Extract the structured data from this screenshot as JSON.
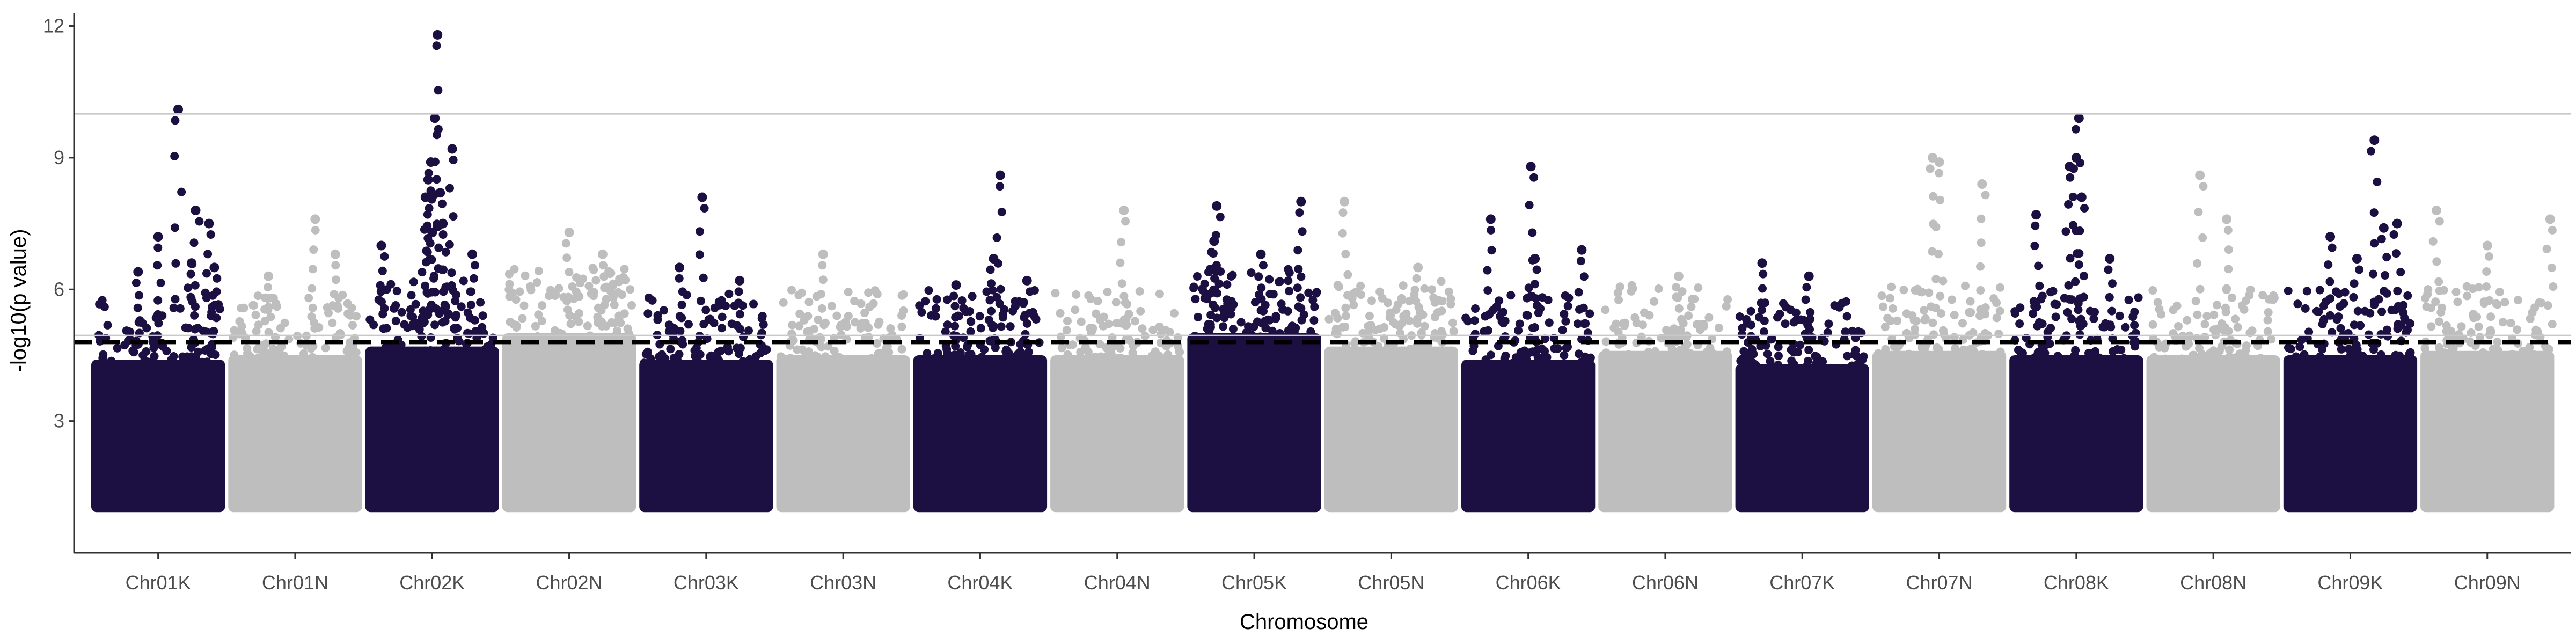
{
  "chart_data": {
    "type": "scatter",
    "subtype": "manhattan",
    "xlabel": "Chromosome",
    "ylabel": "-log10(p value)",
    "ylim": [
      0,
      12.3
    ],
    "y_ticks": [
      3,
      6,
      9,
      12
    ],
    "categories": [
      "Chr01K",
      "Chr01N",
      "Chr02K",
      "Chr02N",
      "Chr03K",
      "Chr03N",
      "Chr04K",
      "Chr04N",
      "Chr05K",
      "Chr05N",
      "Chr06K",
      "Chr06N",
      "Chr07K",
      "Chr07N",
      "Chr08K",
      "Chr08N",
      "Chr09K",
      "Chr09N"
    ],
    "point_floor": 1.0,
    "dense_band_tops": [
      4.4,
      4.5,
      4.7,
      5.0,
      4.4,
      4.5,
      4.5,
      4.5,
      5.0,
      4.7,
      4.4,
      4.6,
      4.3,
      4.6,
      4.5,
      4.5,
      4.5,
      4.6
    ],
    "significance_threshold": 4.8,
    "suggestive_lines": [
      10,
      4.95
    ],
    "grid": false,
    "legend": "none",
    "colors": {
      "odd_chromosome": "#1c0f42",
      "even_chromosome": "#bebebe",
      "threshold_line": "#000000",
      "reference_line": "#c8c8c8",
      "axis": "#333333"
    },
    "notable_points": [
      {
        "chr": "Chr01K",
        "pos": 0.35,
        "y": 6.4
      },
      {
        "chr": "Chr01K",
        "pos": 0.5,
        "y": 7.2
      },
      {
        "chr": "Chr01K",
        "pos": 0.65,
        "y": 10.1
      },
      {
        "chr": "Chr01K",
        "pos": 0.75,
        "y": 6.6
      },
      {
        "chr": "Chr01K",
        "pos": 0.78,
        "y": 7.8
      },
      {
        "chr": "Chr01K",
        "pos": 0.88,
        "y": 7.5
      },
      {
        "chr": "Chr01K",
        "pos": 0.92,
        "y": 6.5
      },
      {
        "chr": "Chr01N",
        "pos": 0.3,
        "y": 6.3
      },
      {
        "chr": "Chr01N",
        "pos": 0.65,
        "y": 7.6
      },
      {
        "chr": "Chr01N",
        "pos": 0.8,
        "y": 6.8
      },
      {
        "chr": "Chr02K",
        "pos": 0.12,
        "y": 7.0
      },
      {
        "chr": "Chr02K",
        "pos": 0.45,
        "y": 8.1
      },
      {
        "chr": "Chr02K",
        "pos": 0.47,
        "y": 8.5
      },
      {
        "chr": "Chr02K",
        "pos": 0.49,
        "y": 8.9
      },
      {
        "chr": "Chr02K",
        "pos": 0.5,
        "y": 7.3
      },
      {
        "chr": "Chr02K",
        "pos": 0.52,
        "y": 9.9
      },
      {
        "chr": "Chr02K",
        "pos": 0.54,
        "y": 11.8
      },
      {
        "chr": "Chr02K",
        "pos": 0.56,
        "y": 8.2
      },
      {
        "chr": "Chr02K",
        "pos": 0.58,
        "y": 7.5
      },
      {
        "chr": "Chr02K",
        "pos": 0.65,
        "y": 9.2
      },
      {
        "chr": "Chr02K",
        "pos": 0.8,
        "y": 6.8
      },
      {
        "chr": "Chr02N",
        "pos": 0.5,
        "y": 7.3
      },
      {
        "chr": "Chr02N",
        "pos": 0.75,
        "y": 6.8
      },
      {
        "chr": "Chr03K",
        "pos": 0.3,
        "y": 6.5
      },
      {
        "chr": "Chr03K",
        "pos": 0.47,
        "y": 8.1
      },
      {
        "chr": "Chr03K",
        "pos": 0.75,
        "y": 6.2
      },
      {
        "chr": "Chr03N",
        "pos": 0.35,
        "y": 6.8
      },
      {
        "chr": "Chr04K",
        "pos": 0.32,
        "y": 6.1
      },
      {
        "chr": "Chr04K",
        "pos": 0.6,
        "y": 6.7
      },
      {
        "chr": "Chr04K",
        "pos": 0.65,
        "y": 8.6
      },
      {
        "chr": "Chr04K",
        "pos": 0.85,
        "y": 6.2
      },
      {
        "chr": "Chr04N",
        "pos": 0.55,
        "y": 7.8
      },
      {
        "chr": "Chr05K",
        "pos": 0.2,
        "y": 7.1
      },
      {
        "chr": "Chr05K",
        "pos": 0.22,
        "y": 7.9
      },
      {
        "chr": "Chr05K",
        "pos": 0.55,
        "y": 6.8
      },
      {
        "chr": "Chr05K",
        "pos": 0.85,
        "y": 8.0
      },
      {
        "chr": "Chr05N",
        "pos": 0.15,
        "y": 8.0
      },
      {
        "chr": "Chr05N",
        "pos": 0.7,
        "y": 6.5
      },
      {
        "chr": "Chr06K",
        "pos": 0.22,
        "y": 7.6
      },
      {
        "chr": "Chr06K",
        "pos": 0.55,
        "y": 6.7
      },
      {
        "chr": "Chr06K",
        "pos": 0.52,
        "y": 8.8
      },
      {
        "chr": "Chr06K",
        "pos": 0.9,
        "y": 6.9
      },
      {
        "chr": "Chr06N",
        "pos": 0.6,
        "y": 6.3
      },
      {
        "chr": "Chr07K",
        "pos": 0.2,
        "y": 6.6
      },
      {
        "chr": "Chr07K",
        "pos": 0.55,
        "y": 6.3
      },
      {
        "chr": "Chr07N",
        "pos": 0.45,
        "y": 9.0
      },
      {
        "chr": "Chr07N",
        "pos": 0.5,
        "y": 8.9
      },
      {
        "chr": "Chr07N",
        "pos": 0.82,
        "y": 8.4
      },
      {
        "chr": "Chr08K",
        "pos": 0.45,
        "y": 8.8
      },
      {
        "chr": "Chr08K",
        "pos": 0.5,
        "y": 9.0
      },
      {
        "chr": "Chr08K",
        "pos": 0.52,
        "y": 9.9
      },
      {
        "chr": "Chr08K",
        "pos": 0.54,
        "y": 8.1
      },
      {
        "chr": "Chr08K",
        "pos": 0.2,
        "y": 7.7
      },
      {
        "chr": "Chr08K",
        "pos": 0.75,
        "y": 6.7
      },
      {
        "chr": "Chr08N",
        "pos": 0.4,
        "y": 8.6
      },
      {
        "chr": "Chr08N",
        "pos": 0.6,
        "y": 7.6
      },
      {
        "chr": "Chr09K",
        "pos": 0.35,
        "y": 7.2
      },
      {
        "chr": "Chr09K",
        "pos": 0.55,
        "y": 6.7
      },
      {
        "chr": "Chr09K",
        "pos": 0.68,
        "y": 9.4
      },
      {
        "chr": "Chr09K",
        "pos": 0.75,
        "y": 7.4
      },
      {
        "chr": "Chr09K",
        "pos": 0.85,
        "y": 7.5
      },
      {
        "chr": "Chr09N",
        "pos": 0.12,
        "y": 7.8
      },
      {
        "chr": "Chr09N",
        "pos": 0.5,
        "y": 7.0
      },
      {
        "chr": "Chr09N",
        "pos": 0.97,
        "y": 7.6
      }
    ]
  }
}
